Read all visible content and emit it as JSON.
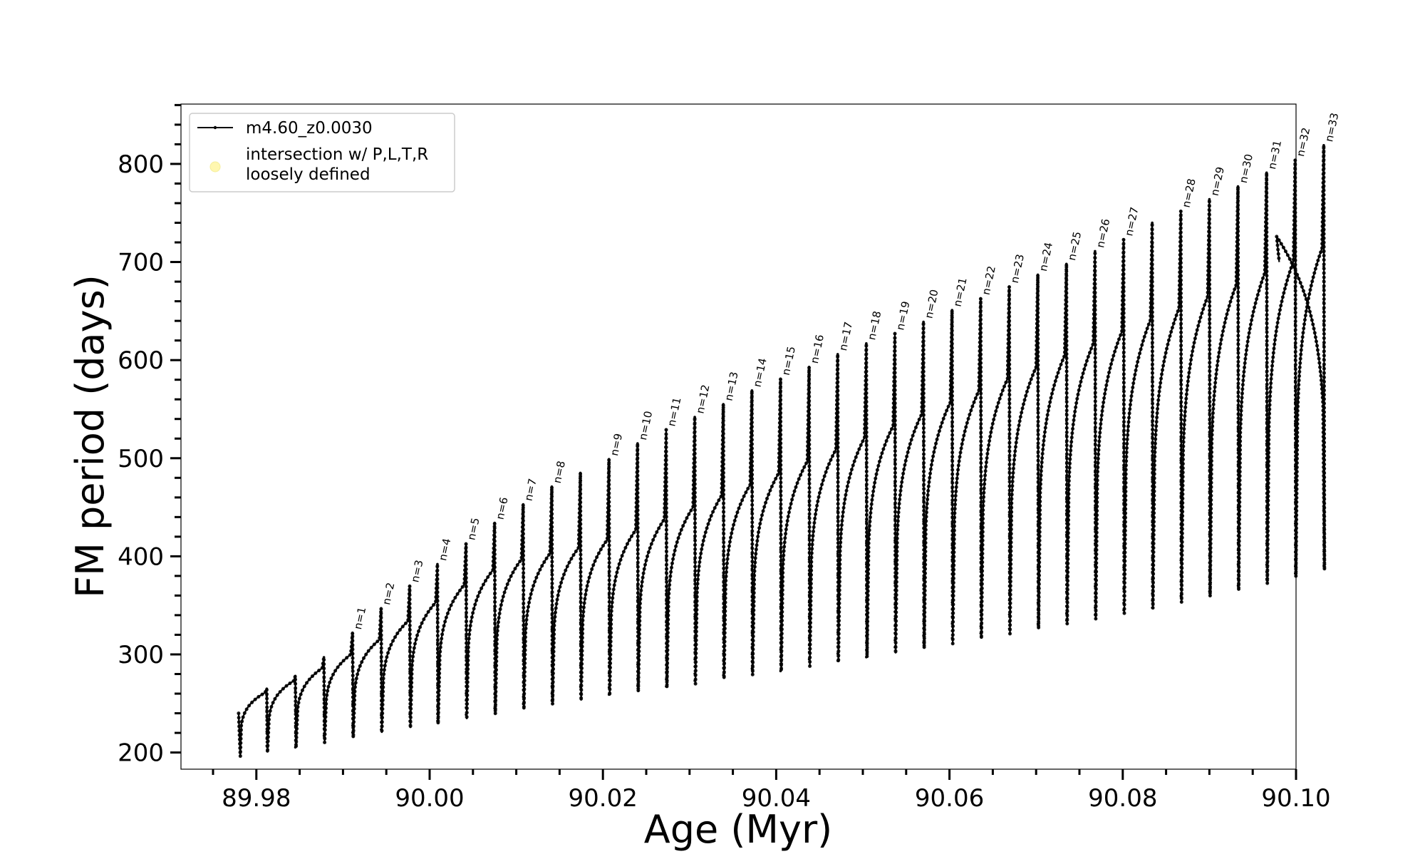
{
  "chart_data": {
    "type": "line",
    "title": "",
    "xlabel": "Age (Myr)",
    "ylabel": "FM period (days)",
    "xlim": [
      89.9713,
      90.1
    ],
    "ylim": [
      183,
      861
    ],
    "x_ticks": [
      89.98,
      90.0,
      90.02,
      90.04,
      90.06,
      90.08,
      90.1
    ],
    "x_tick_labels": [
      "89.98",
      "90.00",
      "90.02",
      "90.04",
      "90.06",
      "90.08",
      "90.10"
    ],
    "y_ticks": [
      200,
      300,
      400,
      500,
      600,
      700,
      800
    ],
    "y_tick_labels": [
      "200",
      "300",
      "400",
      "500",
      "600",
      "700",
      "800"
    ],
    "grid": false,
    "legend_position": "top-left",
    "legend": [
      {
        "label": "m4.60_z0.0030",
        "marker": "line-with-dots",
        "color": "#000000"
      },
      {
        "label": "intersection w/ P,L,T,R\nloosely defined",
        "marker": "circle",
        "color": "#fff9b0"
      }
    ],
    "series": [
      {
        "name": "m4.60_z0.0030",
        "color": "#000000",
        "start_age": 89.97795,
        "end_age": 90.09806,
        "thermal_pulses": [
          {
            "n": null,
            "age": 89.9812,
            "pre_max": 261,
            "spike": 265,
            "min": 200
          },
          {
            "n": null,
            "age": 89.9845,
            "pre_max": 273,
            "spike": 278,
            "min": 205
          },
          {
            "n": null,
            "age": 89.9878,
            "pre_max": 286,
            "spike": 297,
            "min": 210
          },
          {
            "n": "n=1",
            "age": 89.9911,
            "pre_max": 300,
            "spike": 322,
            "min": 215
          },
          {
            "n": "n=2",
            "age": 89.9944,
            "pre_max": 315,
            "spike": 347,
            "min": 220
          },
          {
            "n": "n=3",
            "age": 89.9977,
            "pre_max": 334,
            "spike": 370,
            "min": 225
          },
          {
            "n": "n=4",
            "age": 90.0009,
            "pre_max": 353,
            "spike": 392,
            "min": 229
          },
          {
            "n": "n=5",
            "age": 90.0042,
            "pre_max": 371,
            "spike": 413,
            "min": 234
          },
          {
            "n": "n=6",
            "age": 90.0075,
            "pre_max": 386,
            "spike": 434,
            "min": 239
          },
          {
            "n": "n=7",
            "age": 90.0108,
            "pre_max": 397,
            "spike": 453,
            "min": 244
          },
          {
            "n": "n=8",
            "age": 90.0141,
            "pre_max": 403,
            "spike": 471,
            "min": 249
          },
          {
            "n": null,
            "age": 90.0174,
            "pre_max": 409,
            "spike": 485,
            "min": 253
          },
          {
            "n": "n=9",
            "age": 90.0207,
            "pre_max": 417,
            "spike": 499,
            "min": 258
          },
          {
            "n": "n=10",
            "age": 90.024,
            "pre_max": 427,
            "spike": 515,
            "min": 262
          },
          {
            "n": "n=11",
            "age": 90.0273,
            "pre_max": 438,
            "spike": 529,
            "min": 266
          },
          {
            "n": "n=12",
            "age": 90.0306,
            "pre_max": 450,
            "spike": 542,
            "min": 270
          },
          {
            "n": "n=13",
            "age": 90.0339,
            "pre_max": 462,
            "spike": 555,
            "min": 275
          },
          {
            "n": "n=14",
            "age": 90.0372,
            "pre_max": 473,
            "spike": 569,
            "min": 279
          },
          {
            "n": "n=15",
            "age": 90.0405,
            "pre_max": 485,
            "spike": 581,
            "min": 283
          },
          {
            "n": "n=16",
            "age": 90.0438,
            "pre_max": 497,
            "spike": 593,
            "min": 288
          },
          {
            "n": "n=17",
            "age": 90.0471,
            "pre_max": 509,
            "spike": 606,
            "min": 292
          },
          {
            "n": "n=18",
            "age": 90.0504,
            "pre_max": 521,
            "spike": 617,
            "min": 297
          },
          {
            "n": "n=19",
            "age": 90.0537,
            "pre_max": 533,
            "spike": 627,
            "min": 301
          },
          {
            "n": "n=20",
            "age": 90.057,
            "pre_max": 545,
            "spike": 639,
            "min": 306
          },
          {
            "n": "n=21",
            "age": 90.0603,
            "pre_max": 557,
            "spike": 651,
            "min": 311
          },
          {
            "n": "n=22",
            "age": 90.0636,
            "pre_max": 569,
            "spike": 663,
            "min": 316
          },
          {
            "n": "n=23",
            "age": 90.0669,
            "pre_max": 581,
            "spike": 675,
            "min": 321
          },
          {
            "n": "n=24",
            "age": 90.0702,
            "pre_max": 593,
            "spike": 687,
            "min": 326
          },
          {
            "n": "n=25",
            "age": 90.0735,
            "pre_max": 605,
            "spike": 698,
            "min": 331
          },
          {
            "n": "n=26",
            "age": 90.0768,
            "pre_max": 617,
            "spike": 711,
            "min": 336
          },
          {
            "n": "n=27",
            "age": 90.0801,
            "pre_max": 629,
            "spike": 723,
            "min": 342
          },
          {
            "n": null,
            "age": 90.0834,
            "pre_max": 641,
            "spike": 740,
            "min": 347
          },
          {
            "n": "n=28",
            "age": 90.0867,
            "pre_max": 653,
            "spike": 752,
            "min": 353
          },
          {
            "n": "n=29",
            "age": 90.09,
            "pre_max": 665,
            "spike": 764,
            "min": 359
          },
          {
            "n": "n=30",
            "age": 90.0933,
            "pre_max": 677,
            "spike": 777,
            "min": 365
          },
          {
            "n": "n=31",
            "age": 90.0966,
            "pre_max": 689,
            "spike": 791,
            "min": 372
          },
          {
            "n": "n=32",
            "age": 90.0999,
            "pre_max": 701,
            "spike": 804,
            "min": 379
          },
          {
            "n": "n=33",
            "age": 90.1032,
            "pre_max": 714,
            "spike": 819,
            "min": 386
          }
        ],
        "final_max": 726,
        "final_value": 700
      }
    ]
  }
}
